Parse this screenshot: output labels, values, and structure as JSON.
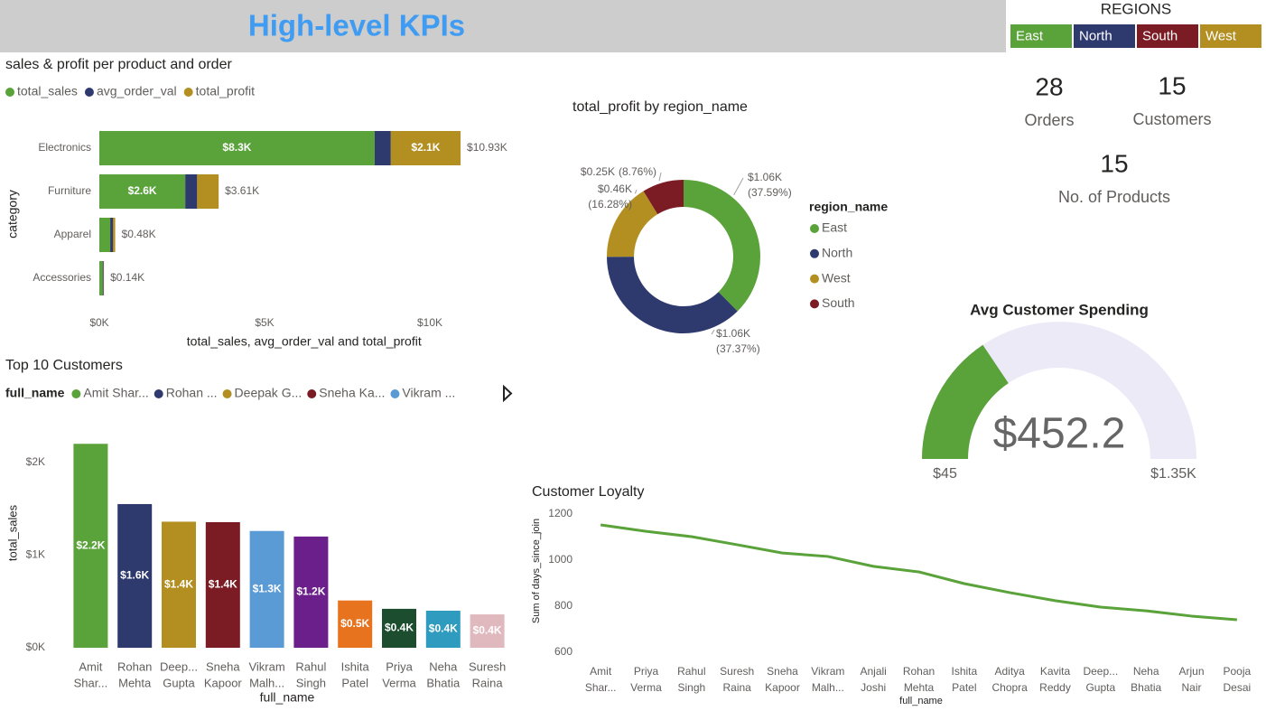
{
  "header": {
    "title": "High-level KPIs"
  },
  "slicer": {
    "title": "REGIONS",
    "items": [
      "East",
      "North",
      "South",
      "West"
    ],
    "colors": [
      "#5aa23a",
      "#2e3a6e",
      "#7b1c24",
      "#b38f22"
    ]
  },
  "cards": [
    {
      "value": 28,
      "label": "Orders"
    },
    {
      "value": 15,
      "label": "Customers"
    },
    {
      "value": 15,
      "label": "No. of Products"
    }
  ],
  "chart_data": [
    {
      "type": "hbar_stacked",
      "title": "sales & profit per product and order",
      "categories": [
        "Electronics",
        "Furniture",
        "Apparel",
        "Accessories"
      ],
      "series": [
        {
          "name": "total_sales",
          "color": "#5aa23a",
          "values": [
            8330,
            2600,
            330,
            100
          ],
          "value_labels": [
            "$8.3K",
            "$2.6K",
            null,
            null
          ]
        },
        {
          "name": "avg_order_val",
          "color": "#2e3a6e",
          "values": [
            490,
            360,
            80,
            30
          ]
        },
        {
          "name": "total_profit",
          "color": "#b38f22",
          "values": [
            2110,
            650,
            70,
            10
          ],
          "value_labels": [
            "$2.1K",
            null,
            null,
            null
          ]
        }
      ],
      "totals": [
        10930,
        3610,
        480,
        140
      ],
      "total_labels": [
        "$10.93K",
        "$3.61K",
        "$0.48K",
        "$0.14K"
      ],
      "xlim": [
        0,
        12500
      ],
      "xticks": [
        {
          "value": 0,
          "label": "$0K"
        },
        {
          "value": 5000,
          "label": "$5K"
        },
        {
          "value": 10000,
          "label": "$10K"
        }
      ],
      "x_label": "total_sales, avg_order_val and total_profit",
      "y_label": "category"
    },
    {
      "type": "donut",
      "title": "total_profit by region_name",
      "legend_title": "region_name",
      "categories": [
        "East",
        "North",
        "West",
        "South"
      ],
      "colors": [
        "#5aa23a",
        "#2e3a6e",
        "#b38f22",
        "#7b1c24"
      ],
      "values": [
        1060,
        1060,
        460,
        250
      ],
      "value_labels": [
        "$1.06K",
        "$1.06K",
        "$0.46K",
        "$0.25K"
      ],
      "percents": [
        37.59,
        37.37,
        16.28,
        8.76
      ],
      "percent_labels": [
        "(37.59%)",
        "(37.37%)",
        "(16.28%)",
        "(8.76%)"
      ]
    },
    {
      "type": "bar",
      "title": "Top 10 Customers",
      "legend_title": "full_name",
      "legend_labels": [
        "Amit Shar...",
        "Rohan ...",
        "Deepak G...",
        "Sneha Ka...",
        "Vikram ..."
      ],
      "categories": [
        [
          "Amit",
          "Shar..."
        ],
        [
          "Rohan",
          "Mehta"
        ],
        [
          "Deep...",
          "Gupta"
        ],
        [
          "Sneha",
          "Kapoor"
        ],
        [
          "Vikram",
          "Malh..."
        ],
        [
          "Rahul",
          "Singh"
        ],
        [
          "Ishita",
          "Patel"
        ],
        [
          "Priya",
          "Verma"
        ],
        [
          "Neha",
          "Bhatia"
        ],
        [
          "Suresh",
          "Raina"
        ]
      ],
      "colors": [
        "#5aa23a",
        "#2e3a6e",
        "#b38f22",
        "#7b1c24",
        "#5b9bd5",
        "#6a1f8a",
        "#e8731e",
        "#1b4d2e",
        "#2e9bbf",
        "#e0b9bf"
      ],
      "values": [
        2200,
        1550,
        1360,
        1355,
        1260,
        1200,
        510,
        420,
        400,
        360
      ],
      "value_labels": [
        "$2.2K",
        "$1.6K",
        "$1.4K",
        "$1.4K",
        "$1.3K",
        "$1.2K",
        "$0.5K",
        "$0.4K",
        "$0.4K",
        "$0.4K"
      ],
      "ylim": [
        0,
        2300
      ],
      "yticks": [
        {
          "value": 0,
          "label": "$0K"
        },
        {
          "value": 1000,
          "label": "$1K"
        },
        {
          "value": 2000,
          "label": "$2K"
        }
      ],
      "x_label": "full_name",
      "y_label": "total_sales"
    },
    {
      "type": "line",
      "title": "Customer Loyalty",
      "color": "#5aa23a",
      "categories": [
        [
          "Amit",
          "Shar..."
        ],
        [
          "Priya",
          "Verma"
        ],
        [
          "Rahul",
          "Singh"
        ],
        [
          "Suresh",
          "Raina"
        ],
        [
          "Sneha",
          "Kapoor"
        ],
        [
          "Vikram",
          "Malh..."
        ],
        [
          "Anjali",
          "Joshi"
        ],
        [
          "Rohan",
          "Mehta"
        ],
        [
          "Ishita",
          "Patel"
        ],
        [
          "Aditya",
          "Chopra"
        ],
        [
          "Kavita",
          "Reddy"
        ],
        [
          "Deep...",
          "Gupta"
        ],
        [
          "Neha",
          "Bhatia"
        ],
        [
          "Arjun",
          "Nair"
        ],
        [
          "Pooja",
          "Desai"
        ]
      ],
      "values": [
        1153,
        1125,
        1102,
        1067,
        1031,
        1016,
        973,
        949,
        898,
        859,
        824,
        796,
        780,
        757,
        741
      ],
      "ylim": [
        570,
        1230
      ],
      "yticks": [
        600,
        800,
        1000,
        1200
      ],
      "x_label": "full_name",
      "y_label": "Sum of days_since_join"
    },
    {
      "type": "gauge",
      "title": "Avg Customer Spending",
      "color": "#5aa23a",
      "track_color": "#eceaf6",
      "value": 452.2,
      "value_label": "$452.2",
      "lim": [
        45,
        1350
      ],
      "ticks": [
        {
          "value": 45,
          "label": "$45"
        },
        {
          "value": 1350,
          "label": "$1.35K"
        }
      ]
    }
  ]
}
